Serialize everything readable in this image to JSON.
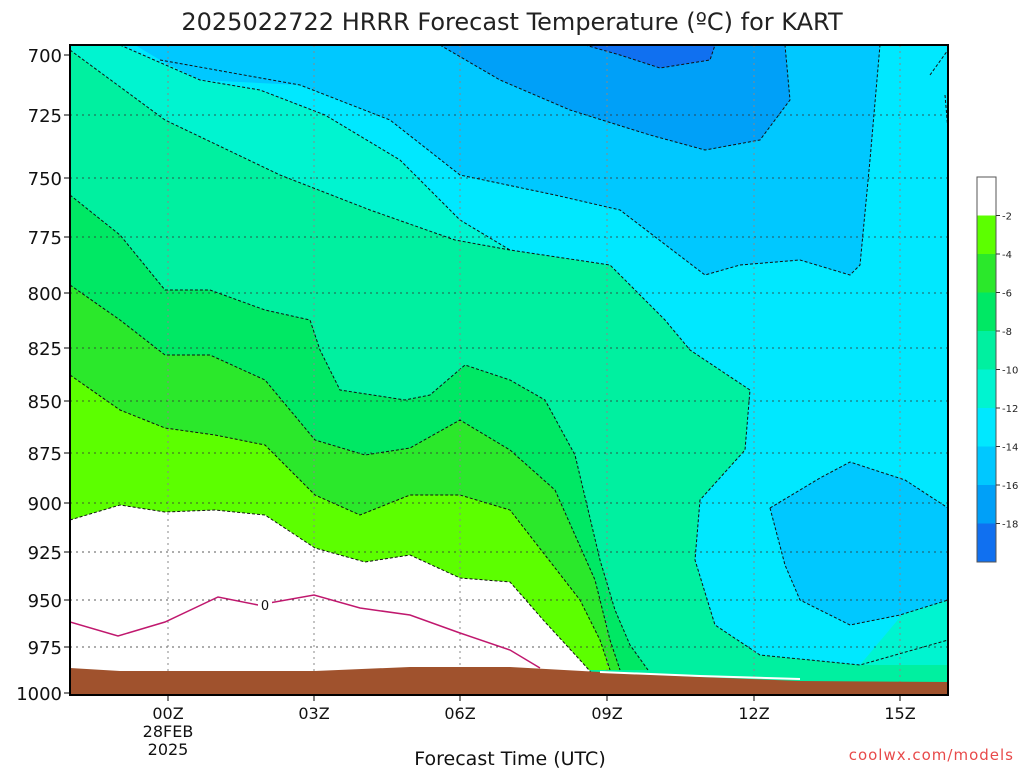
{
  "chart_data": {
    "type": "heatmap",
    "title": "2025022722 HRRR Forecast Temperature (ºC) for KART",
    "xlabel": "Forecast Time (UTC)",
    "x_ticks": [
      "00Z",
      "03Z",
      "06Z",
      "09Z",
      "12Z",
      "15Z"
    ],
    "x_date_labels": [
      "28FEB",
      "2025"
    ],
    "y_ticks": [
      700,
      725,
      750,
      775,
      800,
      825,
      850,
      875,
      900,
      925,
      950,
      975,
      1000
    ],
    "ylim": [
      1000,
      700
    ],
    "colorbar": {
      "ticks": [
        -2,
        -4,
        -6,
        -8,
        -10,
        -12,
        -14,
        -16,
        -18
      ],
      "colors": [
        "#ffffff",
        "#5cff00",
        "#2be82b",
        "#00e864",
        "#00f0a0",
        "#00f4d0",
        "#00e8ff",
        "#00c8ff",
        "#00a0f8",
        "#1070f0"
      ]
    },
    "freezing_line_label": "0",
    "terrain_color": "#a0522d",
    "credit": "coolwx.com/models"
  }
}
